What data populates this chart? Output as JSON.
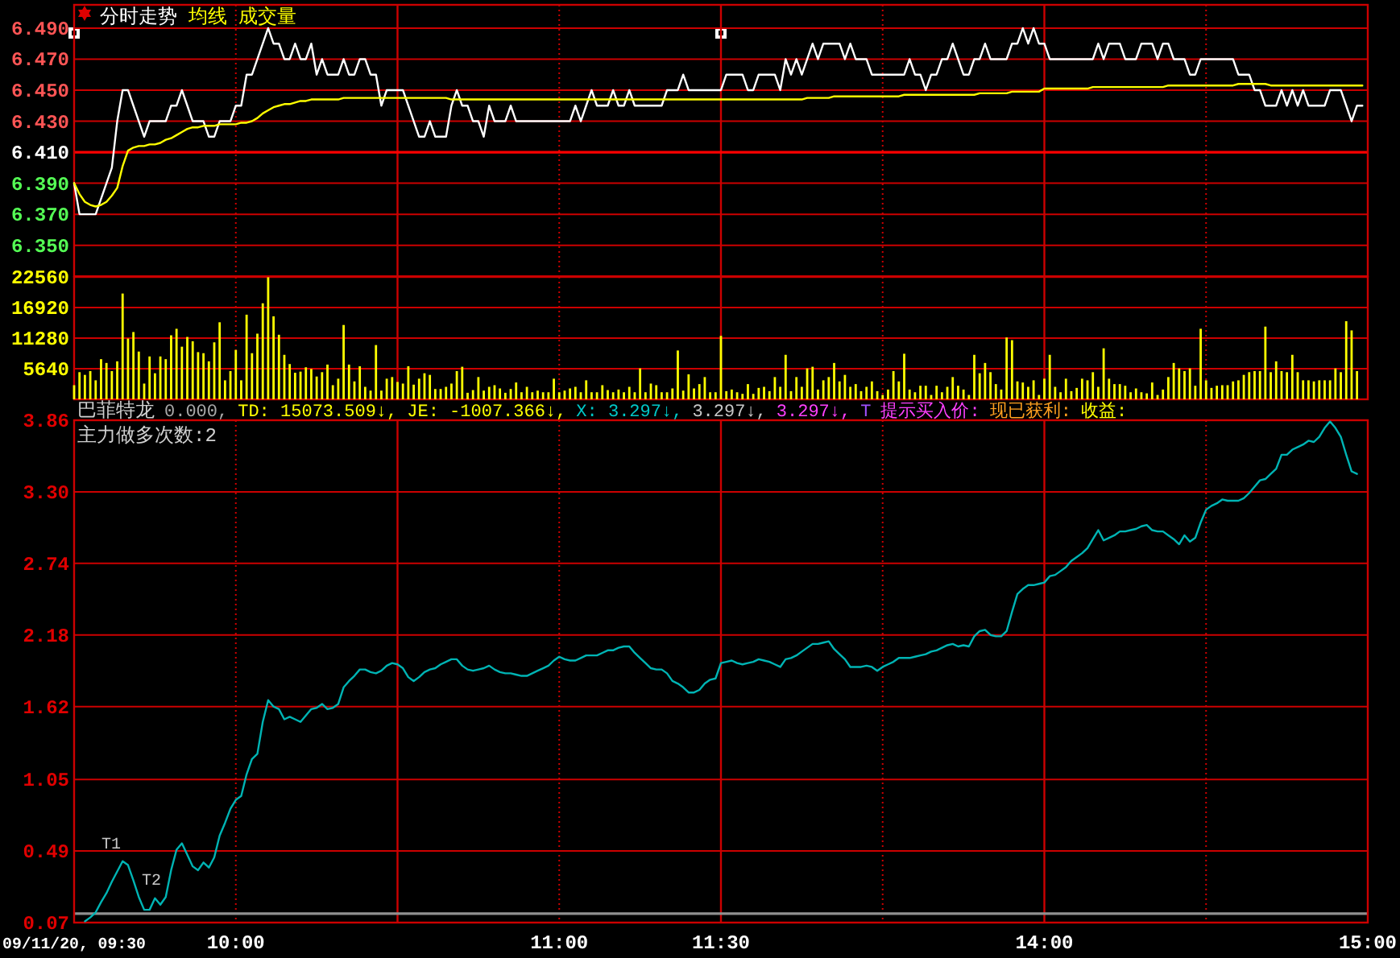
{
  "chart_data": [
    {
      "type": "line",
      "categories": [
        null,
        null,
        null,
        null,
        null,
        null,
        null,
        null,
        null,
        null,
        null,
        null,
        null,
        null,
        null,
        null,
        null,
        null,
        null,
        null,
        null,
        null,
        null,
        null,
        null,
        null,
        null,
        null,
        null,
        null,
        null,
        null,
        null,
        null,
        null,
        null,
        null,
        null,
        null,
        null,
        null,
        null,
        null,
        null,
        null,
        null,
        null,
        null,
        null,
        null,
        null,
        null,
        null,
        null,
        null,
        null,
        null,
        null,
        null,
        null,
        null,
        null,
        null,
        null,
        null,
        null,
        null,
        null,
        null,
        null,
        null,
        null,
        null,
        null,
        null,
        null,
        null,
        null,
        null,
        null,
        null,
        null,
        null,
        null,
        null,
        null,
        null,
        null,
        null,
        null,
        null,
        null,
        null,
        null,
        null,
        null,
        null,
        null,
        null,
        null,
        null,
        null,
        null,
        null,
        null,
        null,
        null,
        null,
        null,
        null,
        null,
        null,
        null,
        null,
        null,
        null,
        null,
        null,
        null,
        null,
        null,
        null,
        null,
        null,
        null,
        null,
        null,
        null,
        null,
        null,
        null,
        null,
        null,
        null,
        null,
        null,
        null,
        null,
        null,
        null,
        null,
        null,
        null,
        null,
        null,
        null,
        null,
        null,
        null,
        null,
        null,
        null,
        null,
        null,
        null,
        null,
        null,
        null,
        null,
        null,
        null,
        null,
        null,
        null,
        null,
        null,
        null,
        null,
        null,
        null,
        null,
        null,
        null,
        null,
        null,
        null,
        null,
        null,
        null,
        null,
        null,
        null,
        null,
        null,
        null,
        null,
        null,
        null,
        null,
        null,
        null,
        null,
        null,
        null,
        null,
        null,
        null,
        null,
        null,
        null,
        null,
        null,
        null,
        null,
        null,
        null,
        null,
        null,
        null,
        null,
        null,
        null,
        null,
        null,
        null,
        null,
        null,
        null,
        null,
        null,
        null,
        null,
        null,
        null,
        null,
        null,
        null,
        null,
        null,
        null,
        null,
        null,
        null,
        null,
        null,
        null,
        null,
        null,
        null,
        null,
        null
      ],
      "series": [
        {
          "name": "分时走势",
          "color": "#ffffff",
          "values": [
            6.39,
            6.37,
            6.37,
            6.37,
            6.37,
            6.38,
            6.39,
            6.4,
            6.43,
            6.45,
            6.45,
            6.44,
            6.43,
            6.42,
            6.43,
            6.43,
            6.43,
            6.43,
            6.44,
            6.44,
            6.45,
            6.44,
            6.43,
            6.43,
            6.43,
            6.42,
            6.42,
            6.43,
            6.43,
            6.43,
            6.44,
            6.44,
            6.46,
            6.46,
            6.47,
            6.48,
            6.49,
            6.48,
            6.48,
            6.47,
            6.47,
            6.48,
            6.47,
            6.47,
            6.48,
            6.46,
            6.47,
            6.46,
            6.46,
            6.46,
            6.47,
            6.46,
            6.46,
            6.47,
            6.47,
            6.46,
            6.46,
            6.44,
            6.45,
            6.45,
            6.45,
            6.45,
            6.44,
            6.43,
            6.42,
            6.42,
            6.43,
            6.42,
            6.42,
            6.42,
            6.44,
            6.45,
            6.44,
            6.44,
            6.43,
            6.43,
            6.42,
            6.44,
            6.43,
            6.43,
            6.43,
            6.44,
            6.43,
            6.43,
            6.43,
            6.43,
            6.43,
            6.43,
            6.43,
            6.43,
            6.43,
            6.43,
            6.43,
            6.44,
            6.43,
            6.44,
            6.45,
            6.44,
            6.44,
            6.44,
            6.45,
            6.44,
            6.44,
            6.45,
            6.44,
            6.44,
            6.44,
            6.44,
            6.44,
            6.44,
            6.45,
            6.45,
            6.45,
            6.46,
            6.45,
            6.45,
            6.45,
            6.45,
            6.45,
            6.45,
            6.45,
            6.46,
            6.46,
            6.46,
            6.46,
            6.45,
            6.45,
            6.46,
            6.46,
            6.46,
            6.46,
            6.45,
            6.47,
            6.46,
            6.47,
            6.46,
            6.47,
            6.48,
            6.47,
            6.48,
            6.48,
            6.48,
            6.48,
            6.47,
            6.48,
            6.47,
            6.47,
            6.47,
            6.46,
            6.46,
            6.46,
            6.46,
            6.46,
            6.46,
            6.46,
            6.47,
            6.46,
            6.46,
            6.45,
            6.46,
            6.46,
            6.47,
            6.47,
            6.48,
            6.47,
            6.46,
            6.46,
            6.47,
            6.47,
            6.48,
            6.47,
            6.47,
            6.47,
            6.47,
            6.48,
            6.48,
            6.49,
            6.48,
            6.49,
            6.48,
            6.48,
            6.47,
            6.47,
            6.47,
            6.47,
            6.47,
            6.47,
            6.47,
            6.47,
            6.47,
            6.48,
            6.47,
            6.48,
            6.48,
            6.48,
            6.47,
            6.47,
            6.47,
            6.48,
            6.48,
            6.48,
            6.47,
            6.48,
            6.48,
            6.47,
            6.47,
            6.47,
            6.46,
            6.46,
            6.47,
            6.47,
            6.47,
            6.47,
            6.47,
            6.47,
            6.47,
            6.46,
            6.46,
            6.46,
            6.45,
            6.45,
            6.44,
            6.44,
            6.44,
            6.45,
            6.44,
            6.45,
            6.44,
            6.45,
            6.44,
            6.44,
            6.44,
            6.44,
            6.45,
            6.45,
            6.45,
            6.44,
            6.43,
            6.44,
            6.44,
            null
          ]
        },
        {
          "name": "均线",
          "color": "#ffff00",
          "values": [
            6.39,
            6.383,
            6.378,
            6.376,
            6.375,
            6.376,
            6.378,
            6.382,
            6.387,
            6.401,
            6.411,
            6.413,
            6.414,
            6.414,
            6.415,
            6.415,
            6.416,
            6.418,
            6.419,
            6.421,
            6.423,
            6.425,
            6.426,
            6.426,
            6.427,
            6.427,
            6.427,
            6.428,
            6.428,
            6.428,
            6.428,
            6.429,
            6.429,
            6.43,
            6.432,
            6.435,
            6.437,
            6.439,
            6.44,
            6.441,
            6.441,
            6.442,
            6.443,
            6.443,
            6.444,
            6.444,
            6.444,
            6.444,
            6.444,
            6.444,
            6.445,
            6.445,
            6.445,
            6.445,
            6.445,
            6.445,
            6.445,
            6.445,
            6.445,
            6.445,
            6.445,
            6.445,
            6.445,
            6.445,
            6.445,
            6.445,
            6.445,
            6.445,
            6.445,
            6.445,
            6.444,
            6.444,
            6.444,
            6.444,
            6.444,
            6.444,
            6.444,
            6.444,
            6.444,
            6.444,
            6.444,
            6.444,
            6.444,
            6.444,
            6.444,
            6.444,
            6.444,
            6.444,
            6.444,
            6.444,
            6.444,
            6.444,
            6.444,
            6.444,
            6.444,
            6.444,
            6.444,
            6.444,
            6.444,
            6.444,
            6.444,
            6.444,
            6.444,
            6.444,
            6.444,
            6.444,
            6.444,
            6.444,
            6.444,
            6.444,
            6.444,
            6.444,
            6.444,
            6.444,
            6.444,
            6.444,
            6.444,
            6.444,
            6.444,
            6.444,
            6.444,
            6.444,
            6.444,
            6.444,
            6.444,
            6.444,
            6.444,
            6.444,
            6.444,
            6.444,
            6.444,
            6.444,
            6.444,
            6.444,
            6.444,
            6.444,
            6.445,
            6.445,
            6.445,
            6.445,
            6.445,
            6.446,
            6.446,
            6.446,
            6.446,
            6.446,
            6.446,
            6.446,
            6.446,
            6.446,
            6.446,
            6.446,
            6.446,
            6.446,
            6.447,
            6.447,
            6.447,
            6.447,
            6.447,
            6.447,
            6.447,
            6.447,
            6.447,
            6.447,
            6.447,
            6.447,
            6.447,
            6.447,
            6.448,
            6.448,
            6.448,
            6.448,
            6.448,
            6.448,
            6.449,
            6.449,
            6.449,
            6.449,
            6.449,
            6.449,
            6.451,
            6.451,
            6.451,
            6.451,
            6.451,
            6.451,
            6.451,
            6.451,
            6.451,
            6.452,
            6.452,
            6.452,
            6.452,
            6.452,
            6.452,
            6.452,
            6.452,
            6.452,
            6.452,
            6.452,
            6.452,
            6.452,
            6.452,
            6.453,
            6.453,
            6.453,
            6.453,
            6.453,
            6.453,
            6.453,
            6.453,
            6.453,
            6.453,
            6.453,
            6.453,
            6.453,
            6.454,
            6.454,
            6.454,
            6.454,
            6.454,
            6.454,
            6.453,
            6.453,
            6.453,
            6.453,
            6.453,
            6.453,
            6.453,
            6.453,
            6.453,
            6.453,
            6.453,
            6.453,
            6.453,
            6.453,
            6.453,
            6.453,
            6.453,
            6.453,
            null
          ]
        }
      ],
      "ylim": [
        6.33,
        6.505
      ],
      "yticks": [
        {
          "value": 6.35,
          "label": "6.350"
        },
        {
          "value": 6.37,
          "label": "6.370"
        },
        {
          "value": 6.39,
          "label": "6.390"
        },
        {
          "value": 6.41,
          "label": "6.410"
        },
        {
          "value": 6.43,
          "label": "6.430"
        },
        {
          "value": 6.45,
          "label": "6.450"
        },
        {
          "value": 6.47,
          "label": "6.470"
        },
        {
          "value": 6.49,
          "label": "6.490"
        }
      ],
      "grid": true,
      "ref_lines": [
        {
          "axis": "y",
          "value": 6.41,
          "color": "#ff0000",
          "line_style": "solid"
        }
      ],
      "legend": "top left",
      "tick_labels": "y"
    },
    {
      "type": "bar",
      "categories": [
        null,
        null,
        null,
        null,
        null,
        null,
        null,
        null,
        null,
        null,
        null,
        null,
        null,
        null,
        null,
        null,
        null,
        null,
        null,
        null,
        null,
        null,
        null,
        null,
        null,
        null,
        null,
        null,
        null,
        null,
        null,
        null,
        null,
        null,
        null,
        null,
        null,
        null,
        null,
        null,
        null,
        null,
        null,
        null,
        null,
        null,
        null,
        null,
        null,
        null,
        null,
        null,
        null,
        null,
        null,
        null,
        null,
        null,
        null,
        null,
        null,
        null,
        null,
        null,
        null,
        null,
        null,
        null,
        null,
        null,
        null,
        null,
        null,
        null,
        null,
        null,
        null,
        null,
        null,
        null,
        null,
        null,
        null,
        null,
        null,
        null,
        null,
        null,
        null,
        null,
        null,
        null,
        null,
        null,
        null,
        null,
        null,
        null,
        null,
        null,
        null,
        null,
        null,
        null,
        null,
        null,
        null,
        null,
        null,
        null,
        null,
        null,
        null,
        null,
        null,
        null,
        null,
        null,
        null,
        null,
        null,
        null,
        null,
        null,
        null,
        null,
        null,
        null,
        null,
        null,
        null,
        null,
        null,
        null,
        null,
        null,
        null,
        null,
        null,
        null,
        null,
        null,
        null,
        null,
        null,
        null,
        null,
        null,
        null,
        null,
        null,
        null,
        null,
        null,
        null,
        null,
        null,
        null,
        null,
        null,
        null,
        null,
        null,
        null,
        null,
        null,
        null,
        null,
        null,
        null,
        null,
        null,
        null,
        null,
        null,
        null,
        null,
        null,
        null,
        null,
        null,
        null,
        null,
        null,
        null,
        null,
        null,
        null,
        null,
        null,
        null,
        null,
        null,
        null,
        null,
        null,
        null,
        null,
        null,
        null,
        null,
        null,
        null,
        null,
        null,
        null,
        null,
        null,
        null,
        null,
        null,
        null,
        null,
        null,
        null,
        null,
        null,
        null,
        null,
        null,
        null,
        null,
        null,
        null,
        null,
        null,
        null,
        null,
        null,
        null,
        null,
        null,
        null,
        null,
        null,
        null,
        null,
        null,
        null,
        null,
        null
      ],
      "series": [
        {
          "name": "成交量",
          "color": "#ffff00",
          "values": [
            2600,
            5000,
            4500,
            5200,
            3500,
            7400,
            6700,
            5200,
            7000,
            19500,
            11200,
            12400,
            8800,
            2900,
            7900,
            4800,
            7900,
            7400,
            11800,
            13000,
            9700,
            11500,
            10700,
            8700,
            8500,
            7000,
            10500,
            14200,
            3500,
            5200,
            9100,
            3500,
            15600,
            8500,
            12100,
            17700,
            22500,
            15300,
            11900,
            8200,
            6500,
            4900,
            5100,
            5900,
            5600,
            4200,
            5000,
            6400,
            2600,
            3800,
            13700,
            6400,
            3300,
            6100,
            2300,
            1600,
            10000,
            1600,
            3800,
            4100,
            3200,
            2900,
            6100,
            2700,
            3800,
            4800,
            4500,
            1900,
            1900,
            2300,
            2900,
            5200,
            6000,
            1200,
            1700,
            4100,
            1600,
            2300,
            2600,
            2000,
            1200,
            1900,
            3100,
            1300,
            2300,
            1300,
            1600,
            1300,
            1300,
            3800,
            1300,
            1600,
            2000,
            2300,
            1300,
            3500,
            1300,
            1300,
            2600,
            1700,
            1300,
            1800,
            1300,
            2300,
            1300,
            5700,
            1300,
            2900,
            2600,
            1300,
            1300,
            2000,
            9000,
            1600,
            4600,
            2000,
            2800,
            4100,
            1300,
            1300,
            11700,
            1500,
            1800,
            1300,
            1000,
            2800,
            1000,
            2100,
            2300,
            1500,
            4100,
            2300,
            8200,
            1500,
            4100,
            2300,
            5700,
            6000,
            1800,
            3500,
            4100,
            6700,
            3300,
            4500,
            2300,
            2800,
            1500,
            2300,
            3300,
            1500,
            800,
            1800,
            5200,
            3300,
            8400,
            1800,
            1300,
            2500,
            2500,
            800,
            2500,
            1300,
            2300,
            4100,
            2500,
            1800,
            800,
            8200,
            4800,
            6700,
            5000,
            2800,
            1800,
            11400,
            10900,
            3300,
            3100,
            2300,
            3500,
            800,
            3800,
            8200,
            2300,
            1300,
            3800,
            1500,
            2100,
            3800,
            3500,
            5000,
            2300,
            9400,
            3800,
            2800,
            2800,
            2500,
            1300,
            2000,
            1300,
            1100,
            3100,
            800,
            1800,
            4100,
            6700,
            5700,
            5200,
            5700,
            2500,
            13000,
            3500,
            2100,
            2500,
            2600,
            2600,
            3300,
            3500,
            4500,
            5000,
            5200,
            5200,
            13400,
            5000,
            7000,
            5200,
            5000,
            8200,
            5000,
            3500,
            3500,
            3300,
            3500,
            3500,
            3500,
            5700,
            5000,
            14400,
            12700,
            5200,
            null,
            null
          ]
        }
      ],
      "ylim": [
        0,
        22560
      ],
      "yticks": [
        5640,
        11280,
        16920,
        22560
      ],
      "grid": true,
      "legend": "top left",
      "tick_labels": "y"
    },
    {
      "type": "line",
      "title": "巴菲特龙",
      "subtitle": "主力做多次数:2",
      "annotations": [
        "0.000,",
        "TD: 15073.509↓,",
        "JE: -1007.366↓,",
        "X: 3.297↓,",
        "3.297↓,",
        "3.297↓,",
        "T",
        "提示买入价:",
        "现已获利:",
        "收益:",
        "T1",
        "T2"
      ],
      "categories": [
        "09/11/20, 09:30",
        null,
        null,
        null,
        null,
        null,
        null,
        null,
        null,
        null,
        null,
        null,
        null,
        null,
        null,
        null,
        null,
        null,
        null,
        null,
        null,
        null,
        null,
        null,
        null,
        null,
        null,
        null,
        null,
        null,
        "10:00",
        null,
        null,
        null,
        null,
        null,
        null,
        null,
        null,
        null,
        null,
        null,
        null,
        null,
        null,
        null,
        null,
        null,
        null,
        null,
        null,
        null,
        null,
        null,
        null,
        null,
        null,
        null,
        null,
        null,
        null,
        null,
        null,
        null,
        null,
        null,
        null,
        null,
        null,
        null,
        null,
        null,
        null,
        null,
        null,
        null,
        null,
        null,
        null,
        null,
        null,
        null,
        null,
        null,
        null,
        null,
        null,
        null,
        null,
        null,
        "11:00",
        null,
        null,
        null,
        null,
        null,
        null,
        null,
        null,
        null,
        null,
        null,
        null,
        null,
        null,
        null,
        null,
        null,
        null,
        null,
        null,
        null,
        null,
        null,
        null,
        null,
        null,
        null,
        null,
        null,
        "11:30",
        null,
        null,
        null,
        null,
        null,
        null,
        null,
        null,
        null,
        null,
        null,
        null,
        null,
        null,
        null,
        null,
        null,
        null,
        null,
        null,
        null,
        null,
        null,
        null,
        null,
        null,
        null,
        null,
        null,
        null,
        null,
        null,
        null,
        null,
        null,
        null,
        null,
        null,
        null,
        null,
        null,
        null,
        null,
        null,
        null,
        null,
        null,
        null,
        null,
        null,
        null,
        null,
        null,
        null,
        null,
        null,
        null,
        null,
        null,
        "14:00",
        null,
        null,
        null,
        null,
        null,
        null,
        null,
        null,
        null,
        null,
        null,
        null,
        null,
        null,
        null,
        null,
        null,
        null,
        null,
        null,
        null,
        null,
        null,
        null,
        null,
        null,
        null,
        null,
        null,
        null,
        null,
        null,
        null,
        null,
        null,
        null,
        null,
        null,
        null,
        null,
        null,
        null,
        null,
        null,
        null,
        null,
        null,
        null,
        null,
        null,
        null,
        null,
        null,
        null,
        null,
        null,
        null,
        null,
        null,
        "15:00"
      ],
      "series": [
        {
          "color": "#00b4b4",
          "values": [
            null,
            null,
            -0.06,
            -0.03,
            0.01,
            0.09,
            0.16,
            0.25,
            0.33,
            0.41,
            0.38,
            0.26,
            0.13,
            0.03,
            0.03,
            0.12,
            0.07,
            0.13,
            0.34,
            0.5,
            0.55,
            0.46,
            0.37,
            0.34,
            0.4,
            0.36,
            0.44,
            0.61,
            0.71,
            0.82,
            0.89,
            0.92,
            1.09,
            1.21,
            1.25,
            1.5,
            1.67,
            1.62,
            1.6,
            1.52,
            1.54,
            1.52,
            1.5,
            1.55,
            1.6,
            1.61,
            1.64,
            1.6,
            1.61,
            1.64,
            1.77,
            1.82,
            1.86,
            1.91,
            1.91,
            1.89,
            1.88,
            1.9,
            1.94,
            1.96,
            1.95,
            1.92,
            1.85,
            1.82,
            1.85,
            1.89,
            1.91,
            1.92,
            1.95,
            1.97,
            1.99,
            1.99,
            1.94,
            1.91,
            1.9,
            1.91,
            1.92,
            1.94,
            1.91,
            1.89,
            1.88,
            1.88,
            1.87,
            1.86,
            1.86,
            1.88,
            1.9,
            1.92,
            1.94,
            1.98,
            2.01,
            1.99,
            1.98,
            1.98,
            2.0,
            2.02,
            2.02,
            2.02,
            2.04,
            2.06,
            2.06,
            2.08,
            2.09,
            2.09,
            2.04,
            2.0,
            1.96,
            1.92,
            1.91,
            1.91,
            1.88,
            1.82,
            1.8,
            1.77,
            1.73,
            1.73,
            1.75,
            1.8,
            1.83,
            1.84,
            1.96,
            1.97,
            1.98,
            1.96,
            1.95,
            1.96,
            1.97,
            1.99,
            1.98,
            1.97,
            1.95,
            1.93,
            1.99,
            2.0,
            2.02,
            2.05,
            2.08,
            2.11,
            2.11,
            2.12,
            2.13,
            2.07,
            2.03,
            1.99,
            1.93,
            1.93,
            1.93,
            1.94,
            1.93,
            1.9,
            1.93,
            1.95,
            1.97,
            2.0,
            2.0,
            2.0,
            2.01,
            2.02,
            2.03,
            2.05,
            2.06,
            2.08,
            2.1,
            2.11,
            2.09,
            2.1,
            2.09,
            2.17,
            2.21,
            2.22,
            2.18,
            2.17,
            2.17,
            2.21,
            2.36,
            2.5,
            2.54,
            2.57,
            2.57,
            2.58,
            2.59,
            2.64,
            2.65,
            2.68,
            2.71,
            2.76,
            2.79,
            2.82,
            2.86,
            2.93,
            3.0,
            2.92,
            2.94,
            2.96,
            2.99,
            2.99,
            3.0,
            3.01,
            3.03,
            3.04,
            3.0,
            2.99,
            2.99,
            2.96,
            2.93,
            2.89,
            2.96,
            2.91,
            2.94,
            3.06,
            3.16,
            3.19,
            3.21,
            3.24,
            3.23,
            3.23,
            3.23,
            3.25,
            3.29,
            3.34,
            3.39,
            3.4,
            3.44,
            3.48,
            3.59,
            3.59,
            3.63,
            3.65,
            3.67,
            3.7,
            3.69,
            3.73,
            3.8,
            3.85,
            3.8,
            3.73,
            3.59,
            3.46,
            3.44,
            null,
            null
          ]
        }
      ],
      "ylim": [
        -0.07,
        3.86
      ],
      "yticks": [
        {
          "value": -0.07,
          "label": "0.07"
        },
        0.49,
        1.05,
        1.62,
        2.18,
        2.74,
        {
          "value": 3.3,
          "label": "3.30"
        },
        3.86
      ],
      "grid": true,
      "ref_lines": [
        {
          "axis": "y",
          "value": 0,
          "color": "#909090",
          "line_style": "solid"
        }
      ]
    }
  ]
}
